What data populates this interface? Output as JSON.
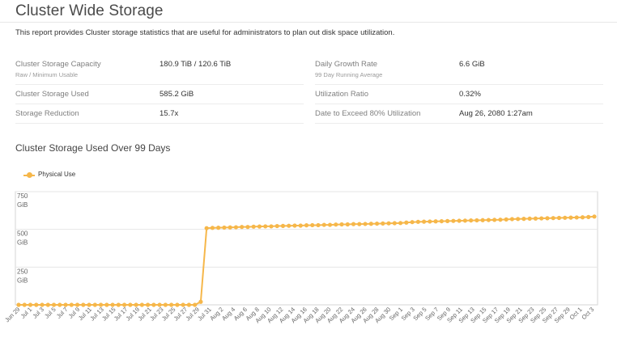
{
  "header": {
    "title": "Cluster Wide Storage",
    "description": "This report provides Cluster storage statistics that are useful for administrators to plan out disk space utilization."
  },
  "stats": {
    "left": [
      {
        "label": "Cluster Storage Capacity",
        "sublabel": "Raw / Minimum Usable",
        "value": "180.9 TiB / 120.6 TiB"
      },
      {
        "label": "Cluster Storage Used",
        "sublabel": "",
        "value": "585.2 GiB"
      },
      {
        "label": "Storage Reduction",
        "sublabel": "",
        "value": "15.7x"
      }
    ],
    "right": [
      {
        "label": "Daily Growth Rate",
        "sublabel": "99 Day Running Average",
        "value": "6.6 GiB"
      },
      {
        "label": "Utilization Ratio",
        "sublabel": "",
        "value": "0.32%"
      },
      {
        "label": "Date to Exceed 80% Utilization",
        "sublabel": "",
        "value": "Aug 26, 2080 1:27am"
      }
    ]
  },
  "chart_section": {
    "title": "Cluster Storage Used Over 99 Days"
  },
  "colors": {
    "series": "#f6b74a",
    "grid": "#e6e6e6",
    "axis_text": "#666666"
  },
  "chart_data": {
    "type": "line",
    "title": "Cluster Storage Used Over 99 Days",
    "xlabel": "",
    "ylabel": "",
    "ylim": [
      0,
      750
    ],
    "yticks": [
      250,
      500,
      750
    ],
    "ytick_labels": [
      "250",
      "500",
      "750"
    ],
    "y_unit": "GiB",
    "grid": true,
    "legend_position": "top-left",
    "x_tick_labels": [
      "Jun 29",
      "Jul 1",
      "Jul 3",
      "Jul 5",
      "Jul 7",
      "Jul 9",
      "Jul 11",
      "Jul 13",
      "Jul 15",
      "Jul 17",
      "Jul 19",
      "Jul 21",
      "Jul 23",
      "Jul 25",
      "Jul 27",
      "Jul 29",
      "Jul 31",
      "Aug 2",
      "Aug 4",
      "Aug 6",
      "Aug 8",
      "Aug 10",
      "Aug 12",
      "Aug 14",
      "Aug 16",
      "Aug 18",
      "Aug 20",
      "Aug 22",
      "Aug 24",
      "Aug 26",
      "Aug 28",
      "Aug 30",
      "Sep 1",
      "Sep 3",
      "Sep 5",
      "Sep 7",
      "Sep 9",
      "Sep 11",
      "Sep 13",
      "Sep 15",
      "Sep 17",
      "Sep 19",
      "Sep 21",
      "Sep 23",
      "Sep 25",
      "Sep 27",
      "Sep 29",
      "Oct 1",
      "Oct 3"
    ],
    "series": [
      {
        "name": "Physical Use",
        "values": [
          0,
          0,
          0,
          0,
          0,
          0,
          0,
          0,
          0,
          0,
          0,
          0,
          0,
          0,
          0,
          0,
          0,
          0,
          0,
          0,
          0,
          0,
          0,
          0,
          0,
          0,
          0,
          0,
          0,
          0,
          0,
          20,
          508,
          510,
          511,
          512,
          513,
          514,
          516,
          516,
          518,
          519,
          520,
          520,
          522,
          523,
          524,
          525,
          525,
          527,
          528,
          528,
          530,
          530,
          532,
          533,
          533,
          535,
          535,
          536,
          537,
          538,
          539,
          540,
          541,
          542,
          545,
          548,
          550,
          551,
          552,
          553,
          554,
          555,
          556,
          557,
          558,
          559,
          560,
          561,
          562,
          563,
          564,
          566,
          568,
          569,
          570,
          571,
          572,
          573,
          574,
          575,
          576,
          577,
          578,
          579,
          580,
          582,
          585
        ]
      }
    ]
  }
}
